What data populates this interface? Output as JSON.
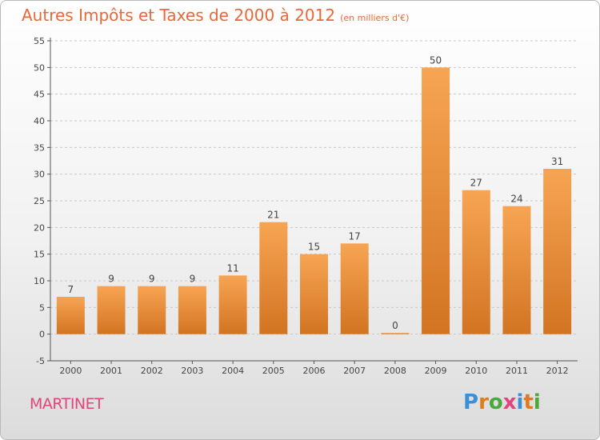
{
  "header": {
    "title": "Autres Impôts et Taxes de 2000 à 2012",
    "subtitle": "(en milliers d'€)"
  },
  "footer": {
    "commune": "MARTINET",
    "logo_letters": [
      "P",
      "r",
      "o",
      "x",
      "i",
      "t",
      "i"
    ]
  },
  "colors": {
    "title": "#e8683a",
    "commune": "#e0457b",
    "bar_top": "#f7a553",
    "bar_bottom": "#d27422",
    "logo": [
      "#3a8fd6",
      "#e07a1f",
      "#4aa83c",
      "#e0457b",
      "#3a8fd6",
      "#e07a1f",
      "#4aa83c"
    ]
  },
  "chart_data": {
    "type": "bar",
    "title": "Autres Impôts et Taxes de 2000 à 2012",
    "subtitle": "(en milliers d'€)",
    "categories": [
      "2000",
      "2001",
      "2002",
      "2003",
      "2004",
      "2005",
      "2006",
      "2007",
      "2008",
      "2009",
      "2010",
      "2011",
      "2012"
    ],
    "values": [
      7,
      9,
      9,
      9,
      11,
      21,
      15,
      17,
      0,
      50,
      27,
      24,
      31
    ],
    "xlabel": "",
    "ylabel": "",
    "ylim": [
      -5,
      55
    ],
    "yticks": [
      -5,
      0,
      5,
      10,
      15,
      20,
      25,
      30,
      35,
      40,
      45,
      50,
      55
    ],
    "grid": "horizontal dashed",
    "legend": "none"
  }
}
